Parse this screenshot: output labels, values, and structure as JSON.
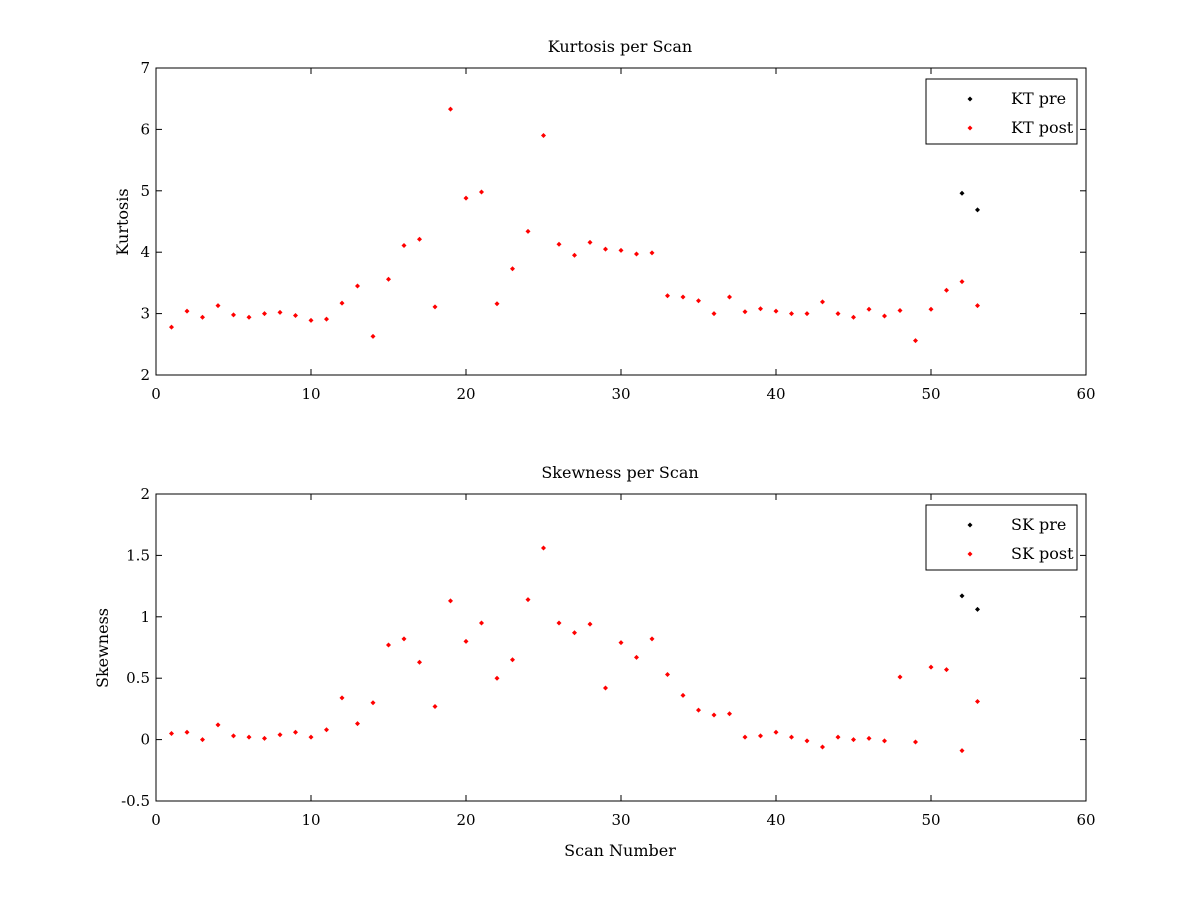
{
  "chart_data": [
    {
      "type": "scatter",
      "title": "Kurtosis per Scan",
      "xlabel": "",
      "ylabel": "Kurtosis",
      "xlim": [
        0,
        60
      ],
      "ylim": [
        2,
        7
      ],
      "xticks": [
        "0",
        "10",
        "20",
        "30",
        "40",
        "50",
        "60"
      ],
      "yticks": [
        "2",
        "3",
        "4",
        "5",
        "6",
        "7"
      ],
      "grid": false,
      "legend_position": "top-right",
      "series": [
        {
          "name": "KT pre",
          "color": "#000000",
          "x": [
            52,
            53
          ],
          "y": [
            4.96,
            4.69
          ]
        },
        {
          "name": "KT post",
          "color": "#ff0000",
          "x": [
            1,
            2,
            3,
            4,
            5,
            6,
            7,
            8,
            9,
            10,
            11,
            12,
            13,
            14,
            15,
            16,
            17,
            18,
            19,
            20,
            21,
            22,
            23,
            24,
            25,
            26,
            27,
            28,
            29,
            30,
            31,
            32,
            33,
            34,
            35,
            36,
            37,
            38,
            39,
            40,
            41,
            42,
            43,
            44,
            45,
            46,
            47,
            48,
            49,
            50,
            51,
            52,
            53
          ],
          "y": [
            2.78,
            3.04,
            2.94,
            3.13,
            2.98,
            2.94,
            3.0,
            3.02,
            2.97,
            2.89,
            2.91,
            3.17,
            3.45,
            2.63,
            3.56,
            4.11,
            4.21,
            3.11,
            6.33,
            4.88,
            4.98,
            3.16,
            3.73,
            4.34,
            5.9,
            4.13,
            3.95,
            4.16,
            4.05,
            4.03,
            3.97,
            3.99,
            3.29,
            3.27,
            3.21,
            3.0,
            3.27,
            3.03,
            3.08,
            3.04,
            3.0,
            3.0,
            3.19,
            3.0,
            2.94,
            3.07,
            2.96,
            3.05,
            2.56,
            3.07,
            3.38,
            3.52,
            3.13
          ]
        }
      ]
    },
    {
      "type": "scatter",
      "title": "Skewness per Scan",
      "xlabel": "Scan Number",
      "ylabel": "Skewness",
      "xlim": [
        0,
        60
      ],
      "ylim": [
        -0.5,
        2
      ],
      "xticks": [
        "0",
        "10",
        "20",
        "30",
        "40",
        "50",
        "60"
      ],
      "yticks": [
        "-0.5",
        "0",
        "0.5",
        "1",
        "1.5",
        "2"
      ],
      "grid": false,
      "legend_position": "top-right",
      "series": [
        {
          "name": "SK pre",
          "color": "#000000",
          "x": [
            52,
            53
          ],
          "y": [
            1.17,
            1.06
          ]
        },
        {
          "name": "SK post",
          "color": "#ff0000",
          "x": [
            1,
            2,
            3,
            4,
            5,
            6,
            7,
            8,
            9,
            10,
            11,
            12,
            13,
            14,
            15,
            16,
            17,
            18,
            19,
            20,
            21,
            22,
            23,
            24,
            25,
            26,
            27,
            28,
            29,
            30,
            31,
            32,
            33,
            34,
            35,
            36,
            37,
            38,
            39,
            40,
            41,
            42,
            43,
            44,
            45,
            46,
            47,
            48,
            49,
            50,
            51,
            52,
            53
          ],
          "y": [
            0.05,
            0.06,
            0.0,
            0.12,
            0.03,
            0.02,
            0.01,
            0.04,
            0.06,
            0.02,
            0.08,
            0.34,
            0.13,
            0.3,
            0.77,
            0.82,
            0.63,
            0.27,
            1.13,
            0.8,
            0.95,
            0.5,
            0.65,
            1.14,
            1.56,
            0.95,
            0.87,
            0.94,
            0.42,
            0.79,
            0.67,
            0.82,
            0.53,
            0.36,
            0.24,
            0.2,
            0.21,
            0.02,
            0.03,
            0.06,
            0.02,
            -0.01,
            -0.06,
            0.02,
            0.0,
            0.01,
            -0.01,
            0.51,
            -0.02,
            0.59,
            0.57,
            -0.09,
            0.31
          ]
        }
      ]
    }
  ]
}
